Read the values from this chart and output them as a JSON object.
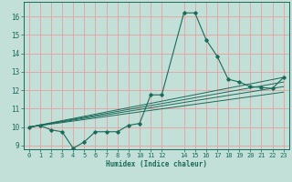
{
  "xlabel": "Humidex (Indice chaleur)",
  "bg_color": "#c2e0d8",
  "grid_color": "#e8a0a0",
  "line_color": "#1a6b5a",
  "xlim": [
    -0.5,
    23.5
  ],
  "ylim": [
    8.8,
    16.8
  ],
  "yticks": [
    9,
    10,
    11,
    12,
    13,
    14,
    15,
    16
  ],
  "xticks": [
    0,
    1,
    2,
    3,
    4,
    5,
    6,
    7,
    8,
    9,
    10,
    11,
    12,
    14,
    15,
    16,
    17,
    18,
    19,
    20,
    21,
    22,
    23
  ],
  "main_line_x": [
    0,
    1,
    2,
    3,
    4,
    5,
    6,
    7,
    8,
    9,
    10,
    11,
    12,
    14,
    15,
    16,
    17,
    18,
    19,
    20,
    21,
    22,
    23
  ],
  "main_line_y": [
    10.0,
    10.1,
    9.85,
    9.75,
    8.85,
    9.2,
    9.75,
    9.75,
    9.75,
    10.1,
    10.2,
    11.75,
    11.75,
    16.2,
    16.2,
    14.75,
    13.85,
    12.6,
    12.45,
    12.2,
    12.15,
    12.1,
    12.7
  ],
  "reg_lines": [
    {
      "x": [
        0,
        23
      ],
      "y": [
        10.0,
        12.7
      ]
    },
    {
      "x": [
        0,
        23
      ],
      "y": [
        10.0,
        12.45
      ]
    },
    {
      "x": [
        0,
        23
      ],
      "y": [
        10.0,
        12.2
      ]
    },
    {
      "x": [
        0,
        23
      ],
      "y": [
        10.0,
        11.9
      ]
    }
  ]
}
